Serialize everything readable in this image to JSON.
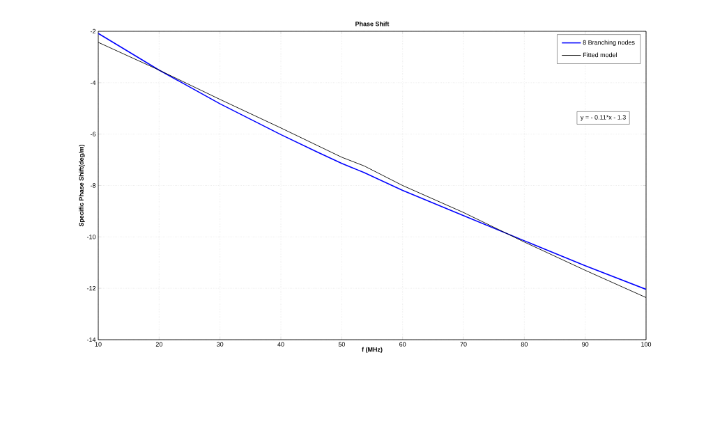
{
  "chart_data": {
    "type": "line",
    "title": "Phase Shift",
    "xlabel": "f (MHz)",
    "ylabel": "Specific Phase Shift(deg/m)",
    "xlim": [
      10,
      100
    ],
    "ylim": [
      -14,
      -2
    ],
    "xticks": [
      10,
      20,
      30,
      40,
      50,
      60,
      70,
      80,
      90,
      100
    ],
    "yticks": [
      -14,
      -12,
      -10,
      -8,
      -6,
      -4,
      -2
    ],
    "grid": true,
    "legend": "top right",
    "marker": "none",
    "line_style": "solid",
    "annotations": [
      "y = - 0.11*x - 1.3"
    ],
    "series": [
      {
        "name": "8 Branching nodes",
        "color": "#0000ff",
        "x": [
          10,
          20,
          30,
          40,
          46,
          50,
          53.7,
          60,
          70,
          80,
          90,
          100
        ],
        "values": [
          -2.08,
          -3.51,
          -4.82,
          -6.02,
          -6.7,
          -7.14,
          -7.5,
          -8.19,
          -9.17,
          -10.15,
          -11.12,
          -12.04
        ]
      },
      {
        "name": "Fitted model",
        "color": "#000000",
        "x": [
          10,
          20,
          30,
          40,
          50,
          53.7,
          60,
          70,
          80,
          90,
          100
        ],
        "values": [
          -2.43,
          -3.51,
          -4.65,
          -5.76,
          -6.9,
          -7.24,
          -8.0,
          -9.05,
          -10.2,
          -11.3,
          -12.36
        ]
      }
    ]
  }
}
